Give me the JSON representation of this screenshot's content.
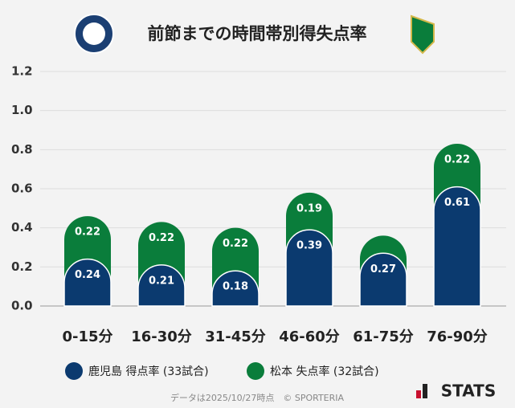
{
  "chart_data": {
    "type": "stacked_bar",
    "title": "前節までの時間帯別得失点率",
    "categories": [
      "0-15分",
      "16-30分",
      "31-45分",
      "46-60分",
      "61-75分",
      "76-90分"
    ],
    "series": [
      {
        "name": "鹿児島 得点率 (33試合)",
        "color": "#0b3a6f",
        "values": [
          0.24,
          0.21,
          0.18,
          0.39,
          0.27,
          0.61
        ]
      },
      {
        "name": "松本 失点率 (32試合)",
        "color": "#0a7d3b",
        "values": [
          0.22,
          0.22,
          0.22,
          0.19,
          0.09,
          0.22
        ],
        "value_labels": [
          "0.22",
          "0.22",
          "0.22",
          "0.19",
          null,
          "0.22"
        ]
      }
    ],
    "ylim": [
      0,
      1.2
    ],
    "yticks": [
      {
        "value": 0,
        "label": "0.0"
      },
      0.2,
      0.4,
      0.6,
      0.8,
      {
        "value": 1,
        "label": "1.0"
      },
      1.2
    ],
    "grid": true,
    "footer": "データは2025/10/27時点　© SPORTERIA",
    "brand": "STATS"
  }
}
